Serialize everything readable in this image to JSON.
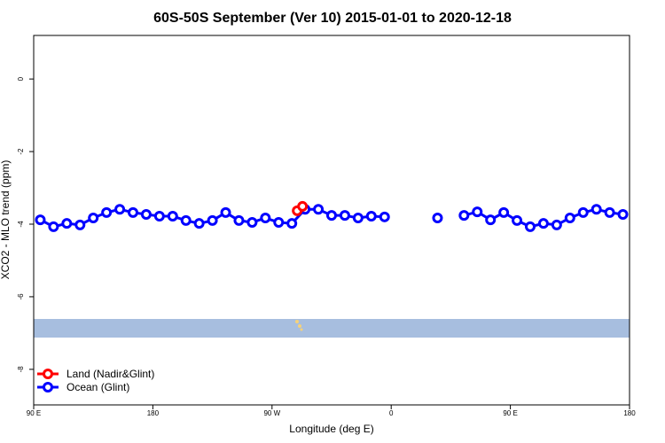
{
  "chart_data": {
    "type": "line",
    "title": "60S-50S September (Ver 10)   2015-01-01 to 2020-12-18",
    "xlabel": "Longitude (deg E)",
    "ylabel": "XCO2 - MLO trend (ppm)",
    "xlim": [
      90,
      540
    ],
    "ylim": [
      -8.98,
      1.2
    ],
    "xticks": [
      {
        "value": 90,
        "label": "90 E"
      },
      180,
      {
        "value": 270,
        "label": "90 W"
      },
      {
        "value": 360,
        "label": "0"
      },
      {
        "value": 450,
        "label": "90 E"
      },
      {
        "value": 540,
        "label": "180"
      }
    ],
    "yticks": [
      0,
      -2,
      -4,
      -6,
      -8
    ],
    "legend": "bottom-left",
    "series": [
      {
        "name": "Land (Nadir&Glint)",
        "color": "#ff0000",
        "x": [
          289,
          293
        ],
        "values": [
          -3.63,
          -3.51
        ]
      },
      {
        "name": "Ocean (Glint)",
        "color": "#0000ff",
        "x": [
          95,
          105,
          115,
          125,
          135,
          145,
          155,
          165,
          175,
          185,
          195,
          205,
          215,
          225,
          235,
          245,
          255,
          265,
          275,
          285,
          295,
          305,
          315,
          325,
          335,
          345,
          355,
          365,
          375,
          385,
          395,
          405,
          415,
          425,
          435,
          445,
          455,
          465,
          475,
          485,
          495,
          505,
          515,
          525,
          535
        ],
        "values": [
          -3.88,
          -4.07,
          -3.98,
          -4.02,
          -3.83,
          -3.68,
          -3.59,
          -3.68,
          -3.73,
          -3.78,
          -3.78,
          -3.9,
          -3.98,
          -3.9,
          -3.68,
          -3.9,
          -3.95,
          -3.83,
          -3.95,
          -3.98,
          -3.59,
          -3.59,
          -3.76,
          -3.76,
          -3.83,
          -3.78,
          -3.8,
          null,
          null,
          null,
          -3.83,
          null,
          -3.76,
          -3.66,
          -3.88,
          -3.68,
          -3.9,
          -4.07,
          -3.98,
          -4.02,
          -3.83,
          -3.68,
          -3.59,
          -3.68,
          -3.73
        ]
      }
    ]
  }
}
